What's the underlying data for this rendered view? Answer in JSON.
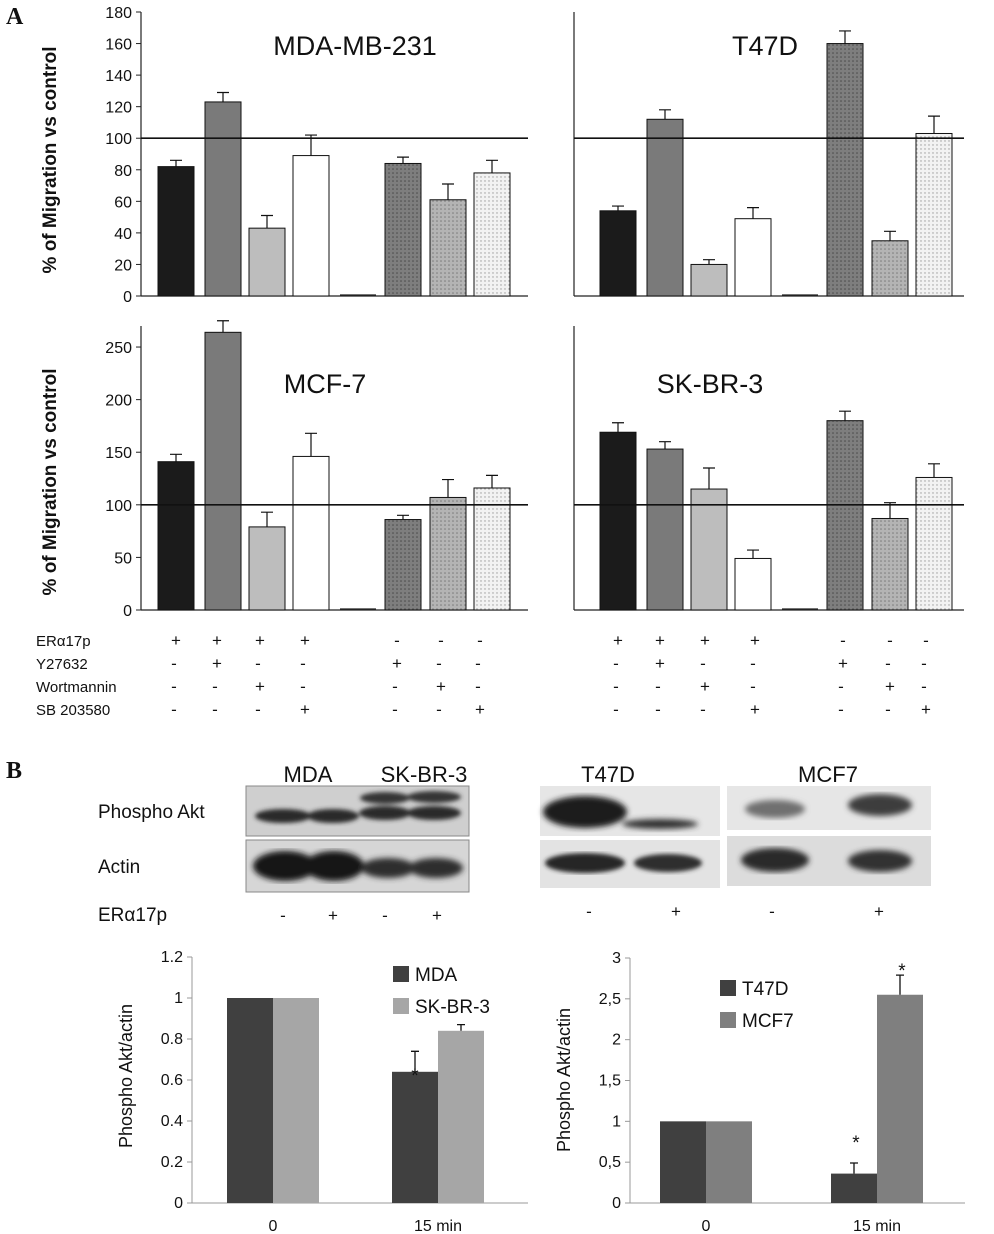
{
  "panel_labels": [
    "A",
    "B"
  ],
  "chart_data": [
    {
      "id": "mda",
      "type": "bar",
      "title": "MDA-MB-231",
      "ylabel": "% of Migration vs control",
      "ylim": [
        0,
        180
      ],
      "yticks": [
        "0",
        "20",
        "40",
        "60",
        "80",
        "100",
        "120",
        "140",
        "160",
        "180"
      ],
      "reference_line": 100,
      "values": [
        82,
        123,
        43,
        89,
        0,
        84,
        61,
        78
      ],
      "errors": [
        4,
        6,
        8,
        13,
        0,
        4,
        10,
        8
      ]
    },
    {
      "id": "t47d",
      "type": "bar",
      "title": "T47D",
      "ylim": [
        0,
        180
      ],
      "reference_line": 100,
      "values": [
        54,
        112,
        20,
        49,
        0,
        160,
        35,
        103
      ],
      "errors": [
        3,
        6,
        3,
        7,
        0,
        8,
        6,
        11
      ]
    },
    {
      "id": "mcf7",
      "type": "bar",
      "title": "MCF-7",
      "ylabel": "% of Migration vs control",
      "ylim": [
        0,
        270
      ],
      "yticks": [
        "0",
        "50",
        "100",
        "150",
        "200",
        "250"
      ],
      "reference_line": 100,
      "values": [
        141,
        264,
        79,
        146,
        0,
        86,
        107,
        116
      ],
      "errors": [
        7,
        11,
        14,
        22,
        0,
        4,
        17,
        12
      ]
    },
    {
      "id": "skbr3",
      "type": "bar",
      "title": "SK-BR-3",
      "ylim": [
        0,
        270
      ],
      "reference_line": 100,
      "values": [
        169,
        153,
        115,
        49,
        0,
        180,
        87,
        126
      ],
      "errors": [
        9,
        7,
        20,
        8,
        0,
        9,
        15,
        13
      ]
    },
    {
      "id": "b1",
      "type": "bar",
      "ylabel": "Phospho Akt/actin",
      "ylim": [
        0,
        1.2
      ],
      "yticks": [
        "0",
        "0.2",
        "0.4",
        "0.6",
        "0.8",
        "1",
        "1.2"
      ],
      "categories": [
        "0",
        "15 min"
      ],
      "series": [
        {
          "name": "MDA",
          "values": [
            1,
            0.64
          ],
          "errors": [
            0,
            0.1
          ]
        },
        {
          "name": "SK-BR-3",
          "values": [
            1,
            0.84
          ],
          "errors": [
            0,
            0.03
          ]
        }
      ],
      "annotations": [
        "*"
      ]
    },
    {
      "id": "b2",
      "type": "bar",
      "ylabel": "Phospho Akt/actin",
      "ylim": [
        0,
        3
      ],
      "yticks": [
        "0",
        "0,5",
        "1",
        "1,5",
        "2",
        "2,5",
        "3"
      ],
      "categories": [
        "0",
        "15 min"
      ],
      "series": [
        {
          "name": "T47D",
          "values": [
            1,
            0.36
          ],
          "errors": [
            0,
            0.13
          ]
        },
        {
          "name": "MCF7",
          "values": [
            1,
            2.55
          ],
          "errors": [
            0,
            0.24
          ]
        }
      ],
      "annotations": [
        "*",
        "*"
      ]
    }
  ],
  "conditions": {
    "rows": [
      "ERα17p",
      "Y27632",
      "Wortmannin",
      "SB 203580"
    ],
    "signs": [
      [
        "+",
        "+",
        "+",
        "+",
        "",
        "-",
        "-",
        "-"
      ],
      [
        "-",
        "+",
        "-",
        "-",
        "",
        "+",
        "-",
        "-"
      ],
      [
        "-",
        "-",
        "+",
        "-",
        "",
        "-",
        "+",
        "-"
      ],
      [
        "-",
        "-",
        "-",
        "+",
        "",
        "-",
        "-",
        "+"
      ]
    ]
  },
  "blots": {
    "left_titles": [
      "MDA",
      "SK-BR-3"
    ],
    "right_titles": [
      "T47D",
      "MCF7"
    ],
    "row_labels": [
      "Phospho Akt",
      "Actin"
    ],
    "treatment_label": "ERα17p",
    "lane_signs": [
      "-",
      "+",
      "-",
      "+"
    ],
    "right_lane_signs": [
      "-",
      "+",
      "-",
      "+"
    ]
  },
  "colors": {
    "bar_colors": [
      "#1b1b1b",
      "#7a7a7a",
      "#bdbdbd",
      "#ffffff",
      "#ffffff",
      "#7e7e7e",
      "#b4b4b4",
      "#ececec"
    ],
    "dark_series": "#404040",
    "light_series": "#a6a6a6",
    "mid_series": "#7f7f7f"
  }
}
